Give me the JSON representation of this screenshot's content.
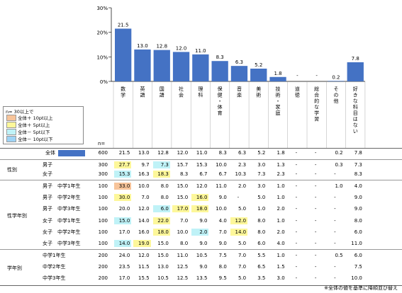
{
  "chart_data": {
    "type": "bar",
    "categories": [
      "数学",
      "英語",
      "国語",
      "社会",
      "理科",
      "保健・体育",
      "音楽",
      "美術",
      "技術・家庭",
      "道徳",
      "総合的な学習",
      "その他",
      "好きな科目はない"
    ],
    "values": [
      21.5,
      13.0,
      12.8,
      12.0,
      11.0,
      8.3,
      6.3,
      5.2,
      1.8,
      null,
      null,
      0.2,
      7.8
    ],
    "value_labels": [
      "21.5",
      "13.0",
      "12.8",
      "12.0",
      "11.0",
      "8.3",
      "6.3",
      "5.2",
      "1.8",
      "-",
      "-",
      "0.2",
      "7.8"
    ],
    "yticks": [
      "30%",
      "20%",
      "10%",
      "0%"
    ],
    "ylim": [
      0,
      30
    ],
    "bar_color": "#4472c4",
    "n_label": "n=",
    "table": {
      "rows": [
        {
          "group": "",
          "label": "全体",
          "n": "600",
          "values": [
            "21.5",
            "13.0",
            "12.8",
            "12.0",
            "11.0",
            "8.3",
            "6.3",
            "5.2",
            "1.8",
            "-",
            "-",
            "0.2",
            "7.8"
          ],
          "hl": [
            "",
            "",
            "",
            "",
            "",
            "",
            "",
            "",
            "",
            "",
            "",
            "",
            ""
          ]
        },
        {
          "group": "性別",
          "label": "男子",
          "n": "300",
          "values": [
            "27.7",
            "9.7",
            "7.3",
            "15.7",
            "15.3",
            "10.0",
            "2.3",
            "3.0",
            "1.3",
            "-",
            "-",
            "0.3",
            "7.3"
          ],
          "hl": [
            "r2",
            "",
            "b1",
            "",
            "",
            "",
            "",
            "",
            "",
            "",
            "",
            "",
            ""
          ]
        },
        {
          "group": "",
          "label": "女子",
          "n": "300",
          "values": [
            "15.3",
            "16.3",
            "18.3",
            "8.3",
            "6.7",
            "6.7",
            "10.3",
            "7.3",
            "2.3",
            "-",
            "-",
            "-",
            "8.3"
          ],
          "hl": [
            "b1",
            "",
            "r2",
            "",
            "",
            "",
            "",
            "",
            "",
            "",
            "",
            "",
            ""
          ]
        },
        {
          "group": "性学年別",
          "label": "男子　中学1年生",
          "n": "100",
          "values": [
            "33.0",
            "10.0",
            "8.0",
            "15.0",
            "12.0",
            "11.0",
            "2.0",
            "3.0",
            "1.0",
            "-",
            "-",
            "1.0",
            "4.0"
          ],
          "hl": [
            "r1",
            "",
            "",
            "",
            "",
            "",
            "",
            "",
            "",
            "",
            "",
            "",
            ""
          ]
        },
        {
          "group": "",
          "label": "男子　中学2年生",
          "n": "100",
          "values": [
            "30.0",
            "7.0",
            "8.0",
            "15.0",
            "16.0",
            "9.0",
            "-",
            "5.0",
            "1.0",
            "-",
            "-",
            "-",
            "9.0"
          ],
          "hl": [
            "r2",
            "",
            "",
            "",
            "r2",
            "",
            "",
            "",
            "",
            "",
            "",
            "",
            ""
          ]
        },
        {
          "group": "",
          "label": "男子　中学3年生",
          "n": "100",
          "values": [
            "20.0",
            "12.0",
            "6.0",
            "17.0",
            "18.0",
            "10.0",
            "5.0",
            "1.0",
            "2.0",
            "-",
            "-",
            "-",
            "9.0"
          ],
          "hl": [
            "",
            "",
            "b1",
            "r2",
            "r2",
            "",
            "",
            "",
            "",
            "",
            "",
            "",
            ""
          ]
        },
        {
          "group": "",
          "label": "女子　中学1年生",
          "n": "100",
          "values": [
            "15.0",
            "14.0",
            "22.0",
            "7.0",
            "9.0",
            "4.0",
            "12.0",
            "8.0",
            "1.0",
            "-",
            "-",
            "-",
            "8.0"
          ],
          "hl": [
            "b1",
            "",
            "r2",
            "",
            "",
            "",
            "r2",
            "",
            "",
            "",
            "",
            "",
            ""
          ]
        },
        {
          "group": "",
          "label": "女子　中学2年生",
          "n": "100",
          "values": [
            "17.0",
            "16.0",
            "18.0",
            "10.0",
            "2.0",
            "7.0",
            "14.0",
            "8.0",
            "2.0",
            "-",
            "-",
            "-",
            "6.0"
          ],
          "hl": [
            "",
            "",
            "r2",
            "",
            "b1",
            "",
            "r2",
            "",
            "",
            "",
            "",
            "",
            ""
          ]
        },
        {
          "group": "",
          "label": "女子　中学3年生",
          "n": "100",
          "values": [
            "14.0",
            "19.0",
            "15.0",
            "8.0",
            "9.0",
            "9.0",
            "5.0",
            "6.0",
            "4.0",
            "-",
            "-",
            "-",
            "11.0"
          ],
          "hl": [
            "b1",
            "r2",
            "",
            "",
            "",
            "",
            "",
            "",
            "",
            "",
            "",
            "",
            ""
          ]
        },
        {
          "group": "学年別",
          "label": "中学1年生",
          "n": "200",
          "values": [
            "24.0",
            "12.0",
            "15.0",
            "11.0",
            "10.5",
            "7.5",
            "7.0",
            "5.5",
            "1.0",
            "-",
            "-",
            "0.5",
            "6.0"
          ],
          "hl": [
            "",
            "",
            "",
            "",
            "",
            "",
            "",
            "",
            "",
            "",
            "",
            "",
            ""
          ]
        },
        {
          "group": "",
          "label": "中学2年生",
          "n": "200",
          "values": [
            "23.5",
            "11.5",
            "13.0",
            "12.5",
            "9.0",
            "8.0",
            "7.0",
            "6.5",
            "1.5",
            "-",
            "-",
            "-",
            "7.5"
          ],
          "hl": [
            "",
            "",
            "",
            "",
            "",
            "",
            "",
            "",
            "",
            "",
            "",
            "",
            ""
          ]
        },
        {
          "group": "",
          "label": "中学3年生",
          "n": "200",
          "values": [
            "17.0",
            "15.5",
            "10.5",
            "12.5",
            "13.5",
            "9.5",
            "5.0",
            "3.5",
            "3.0",
            "-",
            "-",
            "-",
            "10.0"
          ],
          "hl": [
            "",
            "",
            "",
            "",
            "",
            "",
            "",
            "",
            "",
            "",
            "",
            "",
            ""
          ]
        }
      ]
    }
  },
  "legend": {
    "title": "n= 30以上で",
    "items": [
      {
        "label": "全体＋ 10pt以上",
        "color": "#f7c49a"
      },
      {
        "label": "全体＋ 5pt以上",
        "color": "#fdf79a"
      },
      {
        "label": "全体－ 5pt以下",
        "color": "#bff2f7"
      },
      {
        "label": "全体－ 10pt以下",
        "color": "#9ed3f5"
      }
    ]
  },
  "footnote": "※全体の値を基準に降順並び替え"
}
